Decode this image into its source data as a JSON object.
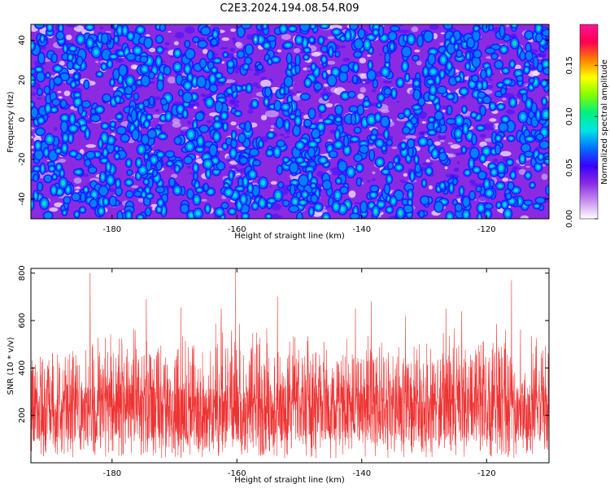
{
  "figure": {
    "title": "C2E3.2024.194.08.54.R09"
  },
  "chart_data": [
    {
      "type": "heatmap",
      "xlabel": "Height of straight line (km)",
      "ylabel": "Frequency (Hz)",
      "xlim": [
        -193,
        -110
      ],
      "ylim": [
        -50,
        48
      ],
      "xticks": [
        -180,
        -160,
        -140,
        -120
      ],
      "yticks": [
        -40,
        -20,
        0,
        20,
        40
      ],
      "colorbar": {
        "label": "Normalized spectral amplitude",
        "range": [
          0,
          0.19
        ],
        "ticks": [
          "0.00",
          "0.05",
          "0.10",
          "0.15"
        ],
        "colors": [
          "#ffffff",
          "#c890f0",
          "#8a2be2",
          "#3a00ff",
          "#0070ff",
          "#00e5e5",
          "#00f080",
          "#80ff00",
          "#ffff00",
          "#ff8000",
          "#ff0050",
          "#ff1493"
        ]
      },
      "background_color": "#8a2be2"
    },
    {
      "type": "line",
      "xlabel": "Height of straight line (km)",
      "ylabel": "SNR (10 * v/v)",
      "xlim": [
        -193,
        -110
      ],
      "ylim": [
        0,
        820
      ],
      "xticks": [
        -180,
        -160,
        -140,
        -120
      ],
      "yticks": [
        200,
        400,
        600,
        800
      ],
      "series": [
        {
          "color": "#ee3333",
          "baseline_mean": 210,
          "envelope": {
            "x": [
              -193,
              -185,
              -170,
              -160,
              -150,
              -140,
              -130,
              -125,
              -118,
              -110
            ],
            "upper": [
              450,
              480,
              500,
              520,
              470,
              460,
              440,
              500,
              520,
              480
            ]
          },
          "peaks": [
            {
              "x": -183.5,
              "y": 800
            },
            {
              "x": -174.5,
              "y": 690
            },
            {
              "x": -169.0,
              "y": 655
            },
            {
              "x": -162.5,
              "y": 650
            },
            {
              "x": -160.2,
              "y": 820
            },
            {
              "x": -153.5,
              "y": 700
            },
            {
              "x": -141.0,
              "y": 650
            },
            {
              "x": -138.5,
              "y": 680
            },
            {
              "x": -133.0,
              "y": 620
            },
            {
              "x": -126.5,
              "y": 650
            },
            {
              "x": -124.0,
              "y": 640
            },
            {
              "x": -116.0,
              "y": 770
            }
          ]
        }
      ]
    }
  ]
}
